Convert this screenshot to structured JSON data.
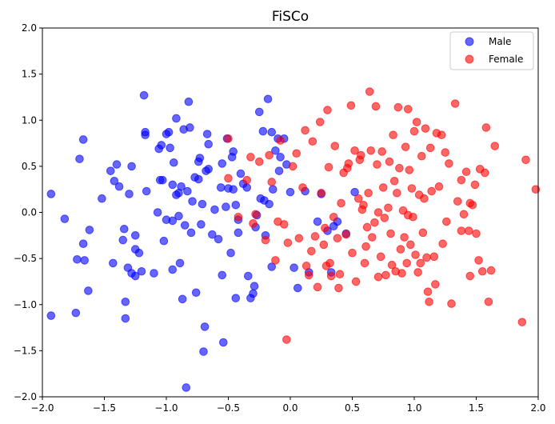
{
  "chart_data": {
    "type": "scatter",
    "title": "FiSCo",
    "xlabel": "",
    "ylabel": "",
    "xlim": [
      -2.0,
      2.0
    ],
    "ylim": [
      -2.0,
      2.0
    ],
    "xticks": [
      "−2.0",
      "−1.5",
      "−1.0",
      "−0.5",
      "0.0",
      "0.5",
      "1.0",
      "1.5",
      "2.0"
    ],
    "yticks": [
      "−2.0",
      "−1.5",
      "−1.0",
      "−0.5",
      "0.0",
      "0.5",
      "1.0",
      "1.5",
      "2.0"
    ],
    "grid": false,
    "legend_position": "top-right",
    "series": [
      {
        "name": "Male",
        "color": "#0000ff",
        "points": [
          [
            -1.93,
            0.2
          ],
          [
            -1.82,
            -0.07
          ],
          [
            -1.93,
            -1.12
          ],
          [
            -1.73,
            -1.09
          ],
          [
            -1.7,
            0.58
          ],
          [
            -1.67,
            0.79
          ],
          [
            -1.72,
            -0.51
          ],
          [
            -1.66,
            -0.52
          ],
          [
            -1.67,
            -0.34
          ],
          [
            -1.62,
            -0.19
          ],
          [
            -1.63,
            -0.85
          ],
          [
            -1.52,
            0.15
          ],
          [
            -1.45,
            0.45
          ],
          [
            -1.42,
            0.34
          ],
          [
            -1.4,
            0.52
          ],
          [
            -1.38,
            0.28
          ],
          [
            -1.43,
            -0.55
          ],
          [
            -1.35,
            -0.3
          ],
          [
            -1.33,
            -0.97
          ],
          [
            -1.33,
            -1.15
          ],
          [
            -1.34,
            -0.18
          ],
          [
            -1.31,
            -0.6
          ],
          [
            -1.3,
            0.2
          ],
          [
            -1.28,
            0.5
          ],
          [
            -1.25,
            -0.4
          ],
          [
            -1.25,
            -0.25
          ],
          [
            -1.22,
            -0.44
          ],
          [
            -1.28,
            -0.66
          ],
          [
            -1.25,
            -0.69
          ],
          [
            -1.2,
            -0.64
          ],
          [
            -1.18,
            1.27
          ],
          [
            -1.17,
            0.84
          ],
          [
            -1.17,
            0.87
          ],
          [
            -1.16,
            0.23
          ],
          [
            -1.1,
            -0.66
          ],
          [
            -1.07,
            0.0
          ],
          [
            -1.05,
            0.35
          ],
          [
            -1.06,
            0.69
          ],
          [
            -1.04,
            0.73
          ],
          [
            -1.03,
            0.35
          ],
          [
            -1.02,
            -0.31
          ],
          [
            -1.0,
            -0.08
          ],
          [
            -1.0,
            0.85
          ],
          [
            -0.98,
            0.87
          ],
          [
            -0.97,
            0.7
          ],
          [
            -0.95,
            0.3
          ],
          [
            -0.95,
            -0.09
          ],
          [
            -0.95,
            -0.62
          ],
          [
            -0.94,
            0.54
          ],
          [
            -0.92,
            1.02
          ],
          [
            -0.92,
            0.19
          ],
          [
            -0.9,
            -0.04
          ],
          [
            -0.9,
            0.21
          ],
          [
            -0.89,
            -0.55
          ],
          [
            -0.88,
            0.28
          ],
          [
            -0.87,
            -0.94
          ],
          [
            -0.86,
            0.9
          ],
          [
            -0.85,
            -0.14
          ],
          [
            -0.84,
            -1.9
          ],
          [
            -0.83,
            0.23
          ],
          [
            -0.82,
            1.2
          ],
          [
            -0.81,
            0.92
          ],
          [
            -0.8,
            -0.22
          ],
          [
            -0.79,
            0.12
          ],
          [
            -0.77,
            0.38
          ],
          [
            -0.76,
            -0.87
          ],
          [
            -0.74,
            0.36
          ],
          [
            -0.74,
            0.55
          ],
          [
            -0.73,
            0.59
          ],
          [
            -0.72,
            -0.13
          ],
          [
            -0.71,
            0.09
          ],
          [
            -0.7,
            -1.51
          ],
          [
            -0.69,
            -1.24
          ],
          [
            -0.68,
            0.45
          ],
          [
            -0.66,
            0.74
          ],
          [
            -0.66,
            0.47
          ],
          [
            -0.67,
            0.85
          ],
          [
            -0.63,
            -0.24
          ],
          [
            -0.61,
            0.03
          ],
          [
            -0.58,
            -0.29
          ],
          [
            -0.56,
            0.27
          ],
          [
            -0.55,
            0.53
          ],
          [
            -0.55,
            -0.68
          ],
          [
            -0.54,
            -1.41
          ],
          [
            -0.52,
            0.06
          ],
          [
            -0.51,
            0.8
          ],
          [
            -0.5,
            0.26
          ],
          [
            -0.48,
            -0.44
          ],
          [
            -0.47,
            0.6
          ],
          [
            -0.46,
            0.66
          ],
          [
            -0.46,
            0.25
          ],
          [
            -0.44,
            -0.93
          ],
          [
            -0.44,
            0.08
          ],
          [
            -0.42,
            -0.22
          ],
          [
            -0.42,
            -0.08
          ],
          [
            -0.4,
            0.42
          ],
          [
            -0.38,
            0.31
          ],
          [
            -0.35,
            0.27
          ],
          [
            -0.34,
            -0.69
          ],
          [
            -0.32,
            -0.93
          ],
          [
            -0.3,
            -0.88
          ],
          [
            -0.29,
            -0.8
          ],
          [
            -0.27,
            -0.03
          ],
          [
            -0.25,
            1.09
          ],
          [
            -0.24,
            0.15
          ],
          [
            -0.22,
            0.88
          ],
          [
            -0.2,
            -0.25
          ],
          [
            -0.18,
            1.23
          ],
          [
            -0.15,
            -0.59
          ],
          [
            -0.17,
            0.09
          ],
          [
            -0.15,
            0.87
          ],
          [
            -0.14,
            0.25
          ],
          [
            -0.12,
            0.67
          ],
          [
            -0.1,
            0.8
          ],
          [
            -0.09,
            0.45
          ],
          [
            -0.08,
            0.6
          ],
          [
            -0.05,
            0.8
          ],
          [
            -0.03,
            0.52
          ],
          [
            0.0,
            0.22
          ],
          [
            0.03,
            -0.6
          ],
          [
            0.06,
            -0.82
          ],
          [
            0.12,
            0.23
          ],
          [
            0.15,
            -0.65
          ],
          [
            0.22,
            -0.1
          ],
          [
            0.25,
            0.2
          ],
          [
            0.3,
            -0.2
          ],
          [
            0.35,
            -0.15
          ],
          [
            0.33,
            -0.65
          ],
          [
            0.38,
            -0.1
          ],
          [
            0.45,
            -0.23
          ],
          [
            0.52,
            0.22
          ],
          [
            -0.21,
            0.13
          ],
          [
            -0.28,
            -0.16
          ]
        ]
      },
      {
        "name": "Female",
        "color": "#ff0000",
        "points": [
          [
            -0.5,
            0.37
          ],
          [
            -0.5,
            0.8
          ],
          [
            -0.42,
            -0.05
          ],
          [
            -0.35,
            0.35
          ],
          [
            -0.32,
            0.6
          ],
          [
            -0.3,
            -0.12
          ],
          [
            -0.28,
            -0.02
          ],
          [
            -0.25,
            0.55
          ],
          [
            -0.2,
            -0.3
          ],
          [
            -0.17,
            0.62
          ],
          [
            -0.15,
            0.33
          ],
          [
            -0.12,
            -0.52
          ],
          [
            -0.1,
            -0.1
          ],
          [
            -0.08,
            0.78
          ],
          [
            -0.05,
            -0.13
          ],
          [
            -0.03,
            -1.38
          ],
          [
            -0.02,
            -0.33
          ],
          [
            0.02,
            0.5
          ],
          [
            0.05,
            0.64
          ],
          [
            0.07,
            -0.28
          ],
          [
            0.1,
            0.27
          ],
          [
            0.12,
            0.89
          ],
          [
            0.13,
            -0.58
          ],
          [
            0.15,
            -0.68
          ],
          [
            0.17,
            -0.42
          ],
          [
            0.18,
            0.77
          ],
          [
            0.2,
            -0.26
          ],
          [
            0.22,
            -0.81
          ],
          [
            0.24,
            0.98
          ],
          [
            0.25,
            0.21
          ],
          [
            0.27,
            -0.35
          ],
          [
            0.28,
            -0.17
          ],
          [
            0.3,
            1.11
          ],
          [
            0.31,
            0.49
          ],
          [
            0.32,
            -0.55
          ],
          [
            0.33,
            -0.69
          ],
          [
            0.35,
            -0.05
          ],
          [
            0.36,
            0.72
          ],
          [
            0.38,
            -0.28
          ],
          [
            0.4,
            -0.67
          ],
          [
            0.41,
            0.1
          ],
          [
            0.43,
            0.43
          ],
          [
            0.45,
            -0.24
          ],
          [
            0.47,
            0.53
          ],
          [
            0.49,
            1.16
          ],
          [
            0.5,
            -0.44
          ],
          [
            0.52,
            0.67
          ],
          [
            0.53,
            -0.75
          ],
          [
            0.55,
            0.15
          ],
          [
            0.56,
            0.57
          ],
          [
            0.57,
            0.62
          ],
          [
            0.59,
            0.08
          ],
          [
            0.6,
            -0.55
          ],
          [
            0.61,
            -0.37
          ],
          [
            0.62,
            -0.16
          ],
          [
            0.63,
            0.21
          ],
          [
            0.64,
            1.31
          ],
          [
            0.65,
            0.67
          ],
          [
            0.66,
            -0.27
          ],
          [
            0.68,
            -0.11
          ],
          [
            0.69,
            1.15
          ],
          [
            0.7,
            0.52
          ],
          [
            0.71,
            0.0
          ],
          [
            0.73,
            -0.48
          ],
          [
            0.74,
            0.66
          ],
          [
            0.75,
            0.27
          ],
          [
            0.76,
            -0.06
          ],
          [
            0.77,
            -0.68
          ],
          [
            0.79,
            0.05
          ],
          [
            0.8,
            0.55
          ],
          [
            0.81,
            -0.23
          ],
          [
            0.82,
            -0.57
          ],
          [
            0.83,
            0.84
          ],
          [
            0.84,
            0.34
          ],
          [
            0.85,
            -0.64
          ],
          [
            0.86,
            0.21
          ],
          [
            0.87,
            1.14
          ],
          [
            0.88,
            0.48
          ],
          [
            0.89,
            -0.4
          ],
          [
            0.9,
            -0.66
          ],
          [
            0.91,
            0.02
          ],
          [
            0.92,
            -0.27
          ],
          [
            0.93,
            0.71
          ],
          [
            0.94,
            -0.55
          ],
          [
            0.95,
            1.12
          ],
          [
            0.96,
            0.46
          ],
          [
            0.97,
            -0.35
          ],
          [
            0.98,
            0.26
          ],
          [
            0.99,
            -0.05
          ],
          [
            1.0,
            0.88
          ],
          [
            1.01,
            -0.46
          ],
          [
            1.02,
            0.98
          ],
          [
            1.03,
            -0.65
          ],
          [
            1.04,
            0.19
          ],
          [
            1.05,
            -0.55
          ],
          [
            1.06,
            0.61
          ],
          [
            1.07,
            -0.22
          ],
          [
            1.08,
            0.15
          ],
          [
            1.09,
            0.91
          ],
          [
            1.1,
            -0.49
          ],
          [
            1.11,
            -0.86
          ],
          [
            1.12,
            -0.97
          ],
          [
            1.13,
            0.7
          ],
          [
            1.14,
            0.23
          ],
          [
            1.16,
            -0.48
          ],
          [
            1.18,
            0.86
          ],
          [
            1.2,
            0.28
          ],
          [
            1.22,
            0.84
          ],
          [
            1.23,
            -0.34
          ],
          [
            1.25,
            0.65
          ],
          [
            1.28,
            0.53
          ],
          [
            1.3,
            -0.99
          ],
          [
            1.33,
            1.18
          ],
          [
            1.35,
            0.12
          ],
          [
            1.38,
            0.35
          ],
          [
            1.4,
            -0.02
          ],
          [
            1.42,
            0.44
          ],
          [
            1.44,
            -0.2
          ],
          [
            1.45,
            -0.69
          ],
          [
            1.47,
            0.08
          ],
          [
            1.49,
            0.3
          ],
          [
            1.5,
            -0.23
          ],
          [
            1.52,
            -0.52
          ],
          [
            1.53,
            0.47
          ],
          [
            1.55,
            -0.64
          ],
          [
            1.58,
            0.92
          ],
          [
            1.6,
            -0.97
          ],
          [
            1.62,
            -0.63
          ],
          [
            1.65,
            0.72
          ],
          [
            1.87,
            -1.19
          ],
          [
            1.9,
            0.57
          ],
          [
            1.98,
            0.25
          ],
          [
            1.57,
            0.43
          ],
          [
            1.45,
            0.1
          ],
          [
            1.38,
            -0.2
          ],
          [
            1.26,
            -0.1
          ],
          [
            1.17,
            -0.78
          ],
          [
            0.95,
            -0.03
          ],
          [
            0.71,
            -0.7
          ],
          [
            0.58,
            0.03
          ],
          [
            0.46,
            0.48
          ],
          [
            0.39,
            -0.82
          ],
          [
            0.29,
            -0.58
          ]
        ]
      }
    ]
  }
}
